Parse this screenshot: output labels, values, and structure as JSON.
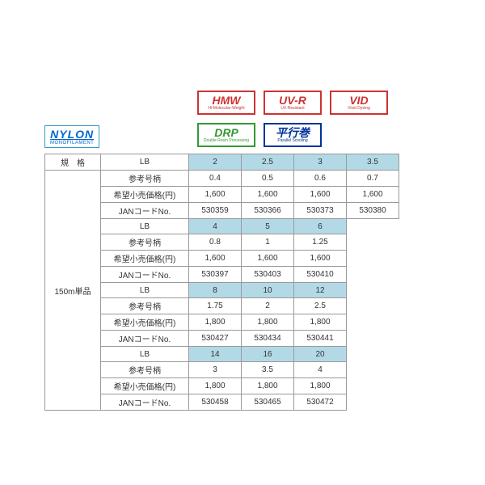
{
  "nylon": {
    "title": "NYLON",
    "sub": "MONOFILAMENT"
  },
  "badges_top": [
    {
      "t": "HMW",
      "s": "Hi-Molecular-Weight",
      "cls": "red"
    },
    {
      "t": "UV-R",
      "s": "UV-Resistant",
      "cls": "red"
    },
    {
      "t": "VID",
      "s": "Vivid Dyeing",
      "cls": "red"
    }
  ],
  "badges_bot": [
    {
      "t": "DRP",
      "s": "Double Resin Processing",
      "cls": "green"
    },
    {
      "t": "平行巻",
      "s": "Parallel Scooling",
      "cls": "blue"
    }
  ],
  "hdr_spec": "規　格",
  "side_label": "150m単品",
  "row_labels": {
    "lb": "LB",
    "sankou": "参考号柄",
    "price": "希望小売価格(円)",
    "jan": "JANコードNo."
  },
  "group1": {
    "lb": [
      "2",
      "2.5",
      "3",
      "3.5"
    ],
    "sankou": [
      "0.4",
      "0.5",
      "0.6",
      "0.7"
    ],
    "price": [
      "1,600",
      "1,600",
      "1,600",
      "1,600"
    ],
    "jan": [
      "530359",
      "530366",
      "530373",
      "530380"
    ]
  },
  "group2": {
    "lb": [
      "4",
      "5",
      "6"
    ],
    "sankou": [
      "0.8",
      "1",
      "1.25"
    ],
    "price": [
      "1,600",
      "1,600",
      "1,600"
    ],
    "jan": [
      "530397",
      "530403",
      "530410"
    ]
  },
  "group3": {
    "lb": [
      "8",
      "10",
      "12"
    ],
    "sankou": [
      "1.75",
      "2",
      "2.5"
    ],
    "price": [
      "1,800",
      "1,800",
      "1,800"
    ],
    "jan": [
      "530427",
      "530434",
      "530441"
    ]
  },
  "group4": {
    "lb": [
      "14",
      "16",
      "20"
    ],
    "sankou": [
      "3",
      "3.5",
      "4"
    ],
    "price": [
      "1,800",
      "1,800",
      "1,800"
    ],
    "jan": [
      "530458",
      "530465",
      "530472"
    ]
  }
}
